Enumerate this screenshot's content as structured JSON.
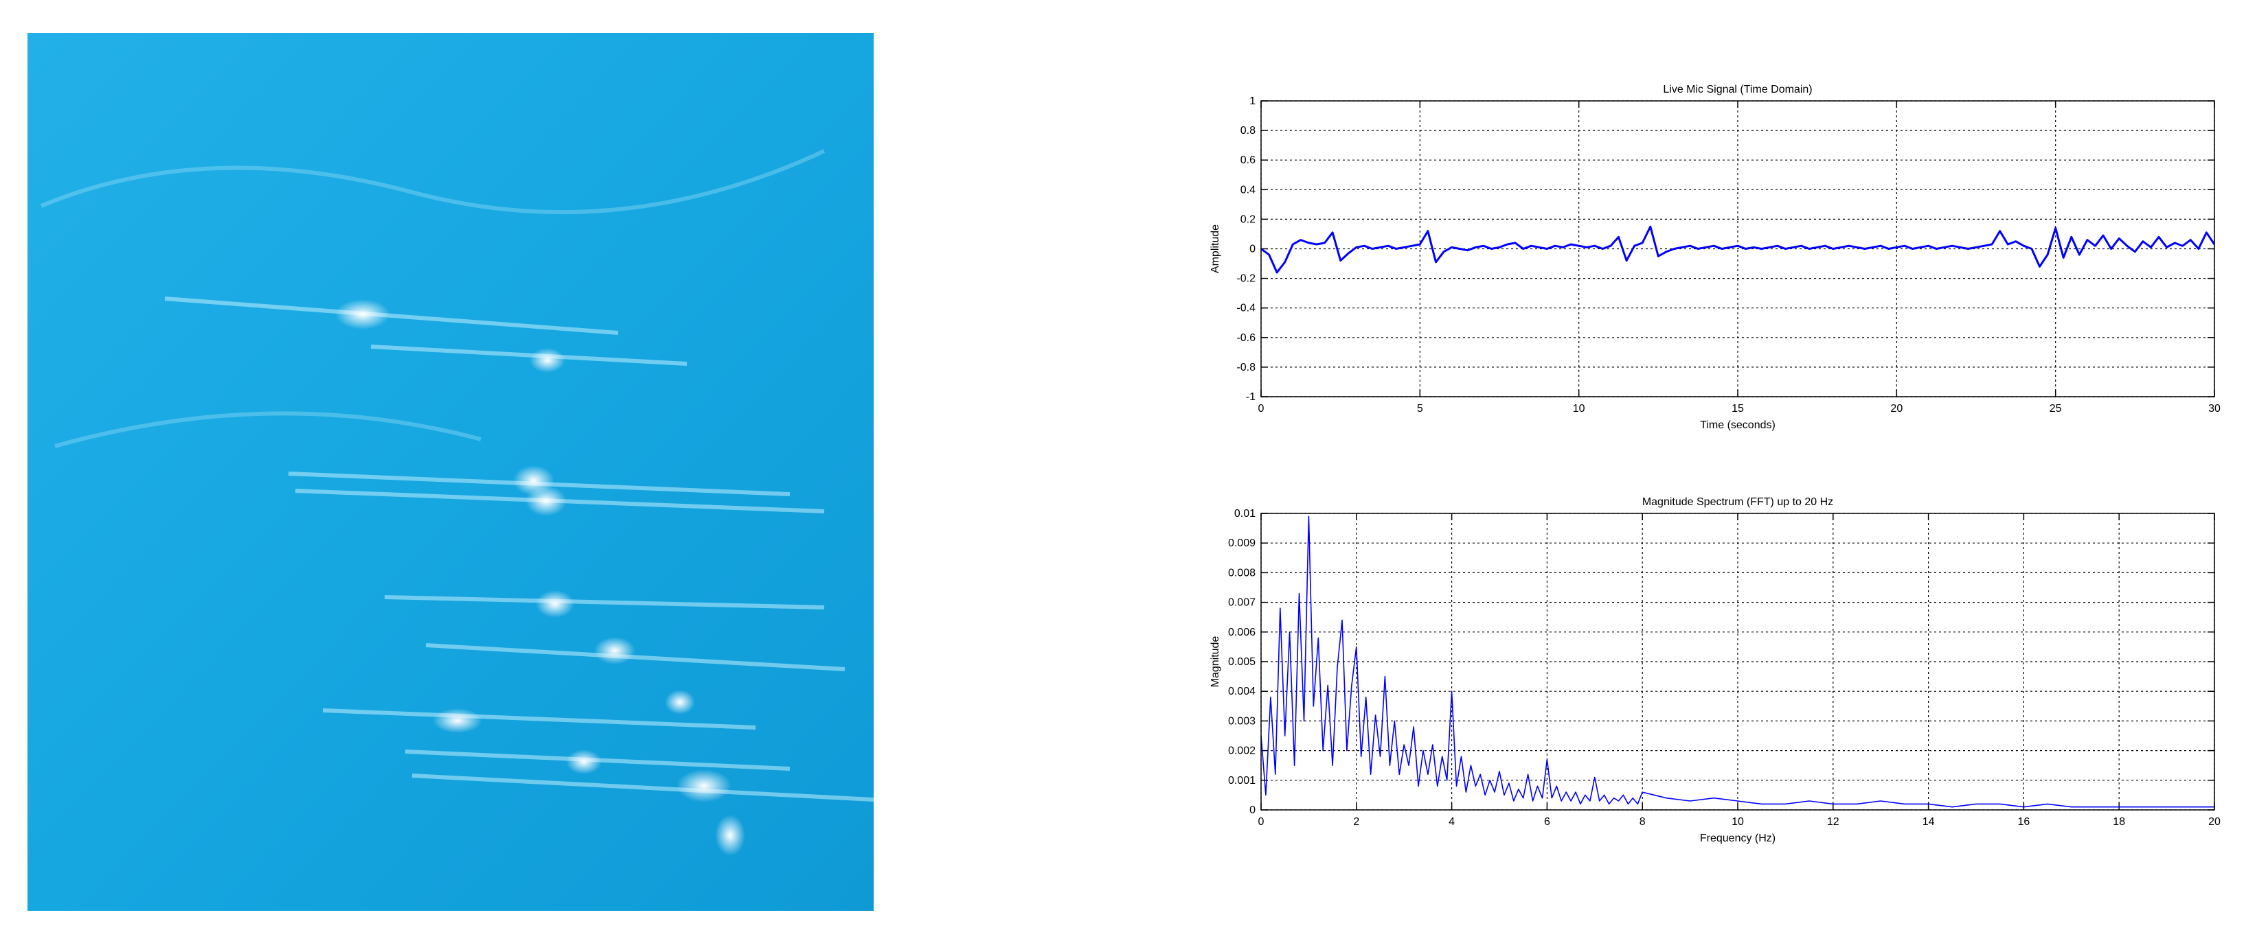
{
  "chart_data": [
    {
      "type": "line",
      "title": "Live Mic Signal (Time Domain)",
      "xlabel": "Time (seconds)",
      "ylabel": "Amplitude",
      "color": "#0000ff",
      "grid": true,
      "xlim": [
        0,
        30
      ],
      "xticks": [
        0,
        5,
        10,
        15,
        20,
        25,
        30
      ],
      "ylim": [
        -1,
        1
      ],
      "yticks": [
        -1,
        -0.8,
        -0.6,
        -0.4,
        -0.2,
        0,
        0.2,
        0.4,
        0.6,
        0.8,
        1
      ],
      "x": [
        0,
        0.25,
        0.5,
        0.75,
        1,
        1.25,
        1.5,
        1.75,
        2,
        2.25,
        2.5,
        2.75,
        3,
        3.25,
        3.5,
        3.75,
        4,
        4.25,
        4.5,
        4.75,
        5,
        5.25,
        5.5,
        5.75,
        6,
        6.25,
        6.5,
        6.75,
        7,
        7.25,
        7.5,
        7.75,
        8,
        8.25,
        8.5,
        8.75,
        9,
        9.25,
        9.5,
        9.75,
        10,
        10.25,
        10.5,
        10.75,
        11,
        11.25,
        11.5,
        11.75,
        12,
        12.25,
        12.5,
        12.75,
        13,
        13.25,
        13.5,
        13.75,
        14,
        14.25,
        14.5,
        14.75,
        15,
        15.25,
        15.5,
        15.75,
        16,
        16.25,
        16.5,
        16.75,
        17,
        17.25,
        17.5,
        17.75,
        18,
        18.25,
        18.5,
        18.75,
        19,
        19.25,
        19.5,
        19.75,
        20,
        20.25,
        20.5,
        20.75,
        21,
        21.25,
        21.5,
        21.75,
        22,
        22.25,
        22.5,
        22.75,
        23,
        23.25,
        23.5,
        23.75,
        24,
        24.25,
        24.5,
        24.75,
        25,
        25.25,
        25.5,
        25.75,
        26,
        26.25,
        26.5,
        26.75,
        27,
        27.25,
        27.5,
        27.75,
        28,
        28.25,
        28.5,
        28.75,
        29,
        29.25,
        29.5,
        29.75,
        30
      ],
      "values": [
        0,
        -0.04,
        -0.16,
        -0.09,
        0.03,
        0.06,
        0.04,
        0.03,
        0.04,
        0.11,
        -0.08,
        -0.03,
        0.01,
        0.02,
        0,
        0.01,
        0.02,
        0,
        0.01,
        0.02,
        0.03,
        0.12,
        -0.09,
        -0.02,
        0.01,
        0,
        -0.01,
        0.01,
        0.02,
        0,
        0.01,
        0.03,
        0.04,
        0,
        0.02,
        0.01,
        0,
        0.02,
        0.01,
        0.03,
        0.02,
        0.01,
        0.02,
        0,
        0.02,
        0.08,
        -0.08,
        0.02,
        0.04,
        0.15,
        -0.05,
        -0.02,
        0,
        0.01,
        0.02,
        0,
        0.01,
        0.02,
        0,
        0.01,
        0.02,
        0,
        0.01,
        0,
        0.01,
        0.02,
        0,
        0.01,
        0.02,
        0,
        0.01,
        0.02,
        0,
        0.01,
        0.02,
        0.01,
        0,
        0.01,
        0.02,
        0,
        0.01,
        0.02,
        0,
        0.01,
        0.02,
        0,
        0.01,
        0.02,
        0.01,
        0,
        0.01,
        0.02,
        0.03,
        0.12,
        0.03,
        0.05,
        0.02,
        0,
        -0.12,
        -0.04,
        0.14,
        -0.06,
        0.08,
        -0.04,
        0.06,
        0.02,
        0.09,
        0,
        0.07,
        0.02,
        -0.02,
        0.05,
        0.01,
        0.08,
        0.01,
        0.04,
        0.02,
        0.06,
        0,
        0.11,
        0.03
      ]
    },
    {
      "type": "line",
      "title": "Magnitude Spectrum (FFT) up to 20 Hz",
      "xlabel": "Frequency (Hz)",
      "ylabel": "Magnitude",
      "color": "#0000ff",
      "grid": true,
      "xlim": [
        0,
        20
      ],
      "xticks": [
        0,
        2,
        4,
        6,
        8,
        10,
        12,
        14,
        16,
        18,
        20
      ],
      "ylim": [
        0,
        0.01
      ],
      "yticks": [
        0,
        0.001,
        0.002,
        0.003,
        0.004,
        0.005,
        0.006,
        0.007,
        0.008,
        0.009,
        0.01
      ],
      "x": [
        0,
        0.1,
        0.2,
        0.3,
        0.4,
        0.5,
        0.6,
        0.7,
        0.8,
        0.9,
        1,
        1.1,
        1.2,
        1.3,
        1.4,
        1.5,
        1.6,
        1.7,
        1.8,
        1.9,
        2,
        2.1,
        2.2,
        2.3,
        2.4,
        2.5,
        2.6,
        2.7,
        2.8,
        2.9,
        3,
        3.1,
        3.2,
        3.3,
        3.4,
        3.5,
        3.6,
        3.7,
        3.8,
        3.9,
        4,
        4.1,
        4.2,
        4.3,
        4.4,
        4.5,
        4.6,
        4.7,
        4.8,
        4.9,
        5,
        5.1,
        5.2,
        5.3,
        5.4,
        5.5,
        5.6,
        5.7,
        5.8,
        5.9,
        6,
        6.1,
        6.2,
        6.3,
        6.4,
        6.5,
        6.6,
        6.7,
        6.8,
        6.9,
        7,
        7.1,
        7.2,
        7.3,
        7.4,
        7.5,
        7.6,
        7.7,
        7.8,
        7.9,
        8,
        8.5,
        9,
        9.5,
        10,
        10.5,
        11,
        11.5,
        12,
        12.5,
        13,
        13.5,
        14,
        14.5,
        15,
        15.5,
        16,
        16.5,
        17,
        17.5,
        18,
        18.5,
        19,
        19.5,
        20
      ],
      "values": [
        0.0025,
        0.0005,
        0.0038,
        0.0012,
        0.0068,
        0.0025,
        0.006,
        0.0015,
        0.0073,
        0.003,
        0.0099,
        0.0035,
        0.0058,
        0.002,
        0.0042,
        0.0015,
        0.0048,
        0.0064,
        0.002,
        0.0042,
        0.0055,
        0.0018,
        0.0038,
        0.0012,
        0.0032,
        0.0018,
        0.0045,
        0.0015,
        0.003,
        0.0012,
        0.0022,
        0.0015,
        0.0028,
        0.0008,
        0.002,
        0.0012,
        0.0022,
        0.0008,
        0.0018,
        0.001,
        0.004,
        0.0008,
        0.0018,
        0.0006,
        0.0015,
        0.0008,
        0.0012,
        0.0005,
        0.001,
        0.0006,
        0.0013,
        0.0005,
        0.0009,
        0.0003,
        0.0007,
        0.0004,
        0.0012,
        0.0003,
        0.0008,
        0.0004,
        0.0017,
        0.0004,
        0.0008,
        0.0003,
        0.0006,
        0.0003,
        0.0006,
        0.0002,
        0.0005,
        0.0003,
        0.0011,
        0.0003,
        0.0005,
        0.0002,
        0.0004,
        0.0003,
        0.0005,
        0.0002,
        0.0004,
        0.0002,
        0.0006,
        0.0004,
        0.0003,
        0.0004,
        0.0003,
        0.0002,
        0.0002,
        0.0003,
        0.0002,
        0.0002,
        0.0003,
        0.0002,
        0.0002,
        0.0001,
        0.0002,
        0.0002,
        0.0001,
        0.0002,
        0.0001,
        0.0001,
        0.0001,
        0.0001,
        0.0001,
        0.0001,
        0.0001
      ]
    }
  ]
}
